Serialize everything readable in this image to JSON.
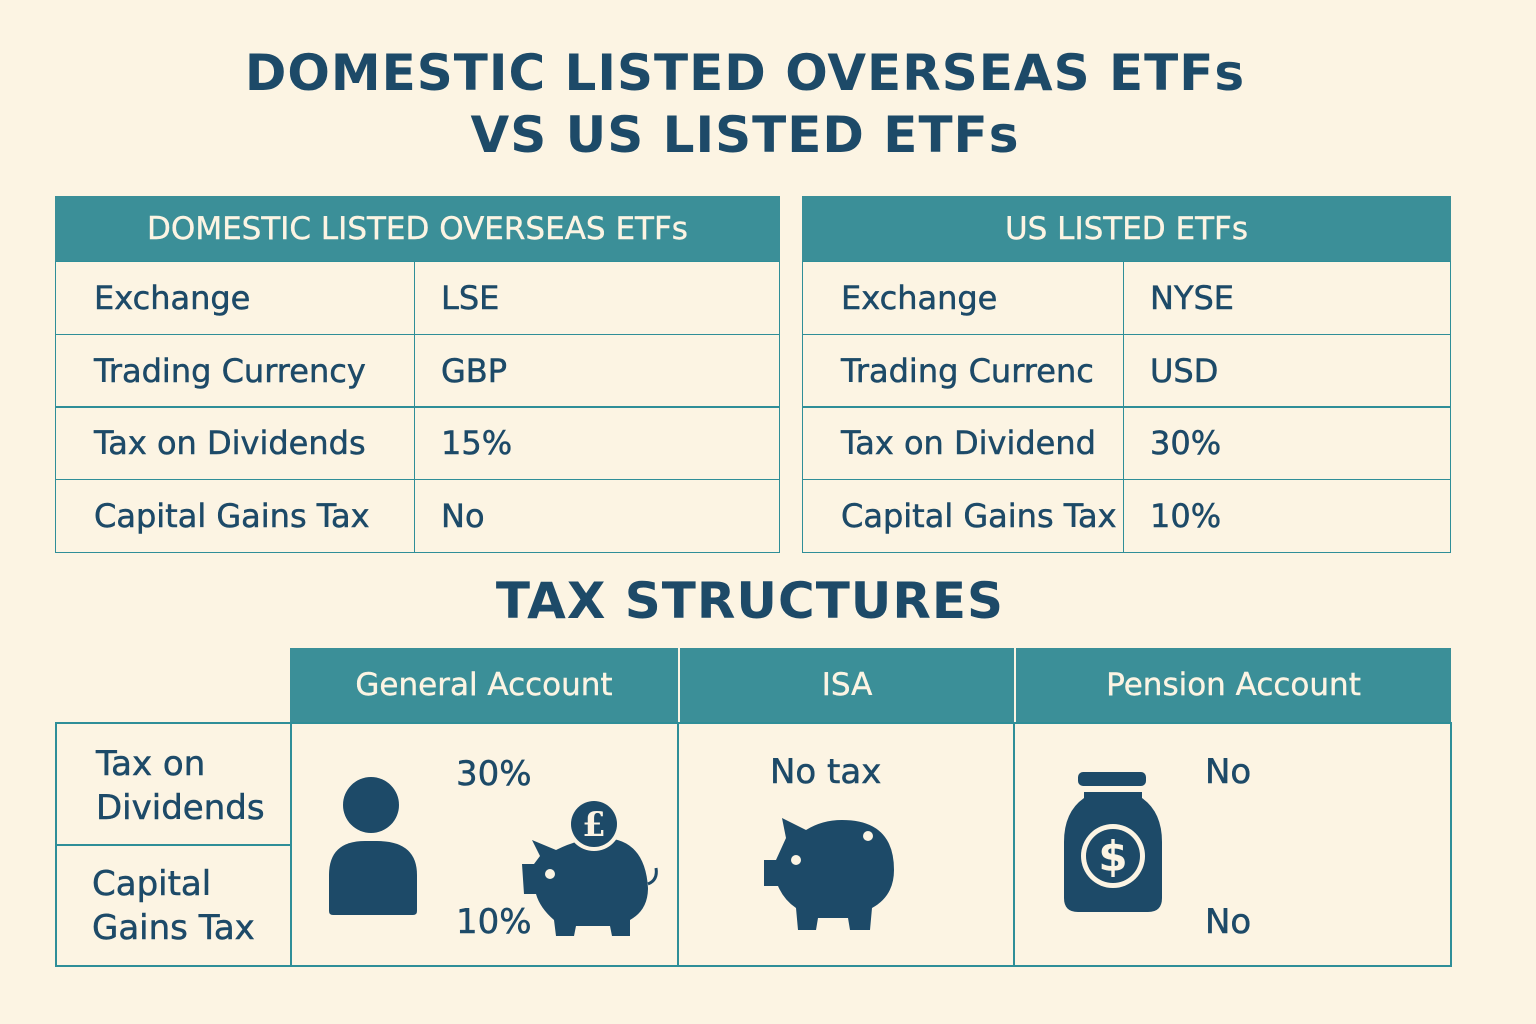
{
  "title": {
    "line1": "DOMESTIC LISTED OVERSEAS ETFs",
    "line2": "VS US LISTED ETFs"
  },
  "domestic": {
    "header": "DOMESTIC LISTED OVERSEAS ETFs",
    "rows": [
      {
        "label": "Exchange",
        "value": "LSE"
      },
      {
        "label": "Trading Currency",
        "value": "GBP"
      },
      {
        "label": "Tax on Dividends",
        "value": "15%"
      },
      {
        "label": "Capital Gains Tax",
        "value": "No"
      }
    ]
  },
  "us": {
    "header": "US LISTED ETFs",
    "rows": [
      {
        "label": "Exchange",
        "value": "NYSE"
      },
      {
        "label": "Trading Currenc",
        "value": "USD"
      },
      {
        "label": "Tax on Dividend",
        "value": "30%"
      },
      {
        "label": "Capital Gains Tax",
        "value": "10%"
      }
    ]
  },
  "tax": {
    "title": "TAX STRUCTURES",
    "columns": [
      "General Account",
      "ISA",
      "Pension Account"
    ],
    "rows": [
      {
        "label_1": "Tax on",
        "label_2": "Dividends"
      },
      {
        "label_1": "Capital",
        "label_2": "Gains Tax"
      }
    ],
    "general": {
      "dividends": "30%",
      "cgt": "10%"
    },
    "isa": {
      "text": "No tax"
    },
    "pension": {
      "dividends": "No",
      "cgt": "No"
    }
  },
  "icons": [
    "person-icon",
    "piggy-bank-pound-icon",
    "piggy-bank-icon",
    "money-bag-dollar-icon"
  ],
  "colors": {
    "background": "#fcf4e3",
    "header": "#3b8f98",
    "text": "#1d4a68",
    "border": "#2f8e98"
  }
}
